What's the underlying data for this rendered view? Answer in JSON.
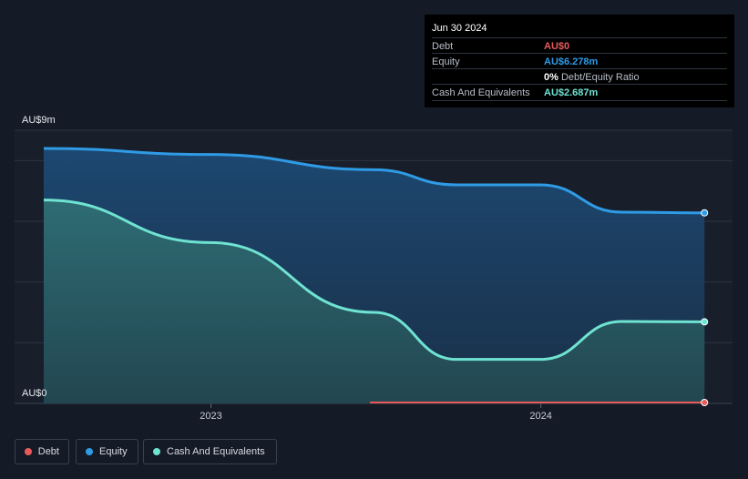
{
  "tooltip": {
    "date": "Jun 30 2024",
    "rows": [
      {
        "label": "Debt",
        "value": "AU$0",
        "color": "#e85a5a"
      },
      {
        "label": "Equity",
        "value": "AU$6.278m",
        "color": "#2f9be6"
      },
      {
        "label": "",
        "value": "0%",
        "extra": "Debt/Equity Ratio",
        "color": "#ffffff"
      },
      {
        "label": "Cash And Equivalents",
        "value": "AU$2.687m",
        "color": "#6fe3d2"
      }
    ]
  },
  "legend": [
    {
      "name": "Debt",
      "color": "#e85a5a"
    },
    {
      "name": "Equity",
      "color": "#2f9be6"
    },
    {
      "name": "Cash And Equivalents",
      "color": "#6fe3d2"
    }
  ],
  "chart_data": {
    "type": "area",
    "title": "",
    "y_tick_labels": [
      "AU$9m",
      "AU$0"
    ],
    "x_tick_labels": [
      "2023",
      "2024"
    ],
    "ylim": [
      0,
      9
    ],
    "unit": "AU$ millions",
    "x_range": [
      "2022-06-30",
      "2024-07-31"
    ],
    "grid": true,
    "legend_position": "bottom-left",
    "series": [
      {
        "name": "Equity",
        "color": "#2f9be6",
        "points": [
          [
            "2022-06-30",
            8.4
          ],
          [
            "2022-12-31",
            8.2
          ],
          [
            "2023-06-30",
            7.7
          ],
          [
            "2023-09-30",
            7.2
          ],
          [
            "2023-12-31",
            7.2
          ],
          [
            "2024-03-31",
            6.3
          ],
          [
            "2024-06-30",
            6.278
          ]
        ]
      },
      {
        "name": "Cash And Equivalents",
        "color": "#6fe3d2",
        "points": [
          [
            "2022-06-30",
            6.7
          ],
          [
            "2022-12-31",
            5.3
          ],
          [
            "2023-06-30",
            3.0
          ],
          [
            "2023-09-30",
            1.45
          ],
          [
            "2023-12-31",
            1.45
          ],
          [
            "2024-03-31",
            2.7
          ],
          [
            "2024-06-30",
            2.687
          ]
        ]
      },
      {
        "name": "Debt",
        "color": "#e85a5a",
        "points": [
          [
            "2023-06-30",
            0
          ],
          [
            "2024-06-30",
            0
          ]
        ]
      }
    ]
  }
}
